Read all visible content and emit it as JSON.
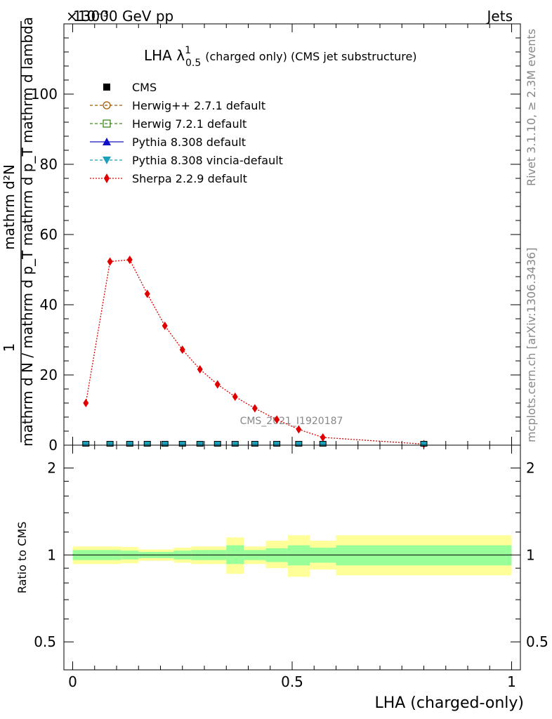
{
  "header": {
    "energy": "13000 GeV pp",
    "process": "Jets",
    "exponent": "×10⁻³"
  },
  "side": {
    "rivet": "Rivet 3.1.10, ≥ 2.3M events",
    "mcplots": "mcplots.cern.ch [arXiv:1306.3436]"
  },
  "chart_data": {
    "type": "line",
    "title_main": "LHA λ",
    "title_sup": "1",
    "title_sub": "0.5",
    "title_rest": "(charged only) (CMS jet substructure)",
    "watermark": "CMS_2021_I1920187",
    "ylabel": {
      "numer_line1": "1",
      "numer_line2": "mathrm d²N",
      "denom": "mathrm d N / mathrm d p_T mathrm d p_T mathrm d lambda"
    },
    "xlabel": "LHA (charged-only)",
    "ratio_ylabel": "Ratio to CMS",
    "xlim": [
      -0.02,
      1.02
    ],
    "ylim": [
      0,
      120
    ],
    "yticks": [
      0,
      20,
      40,
      60,
      80,
      100
    ],
    "xticks": [
      "0",
      "0.5",
      "1"
    ],
    "xtick_values": [
      0,
      0.5,
      1
    ],
    "ratio_yticks_labels": [
      "0.5",
      "1",
      "2"
    ],
    "ratio_yticks_values": [
      0.5,
      1,
      2
    ],
    "ratio_ylim": [
      0.4,
      2.4
    ],
    "legend": [
      {
        "name": "CMS",
        "color": "#000000",
        "marker": "square-filled"
      },
      {
        "name": "Herwig++ 2.7.1 default",
        "color": "#a05a00",
        "marker": "circle-open"
      },
      {
        "name": "Herwig 7.2.1 default",
        "color": "#3a8a1e",
        "marker": "square-open"
      },
      {
        "name": "Pythia 8.308 default",
        "color": "#1010c8",
        "marker": "triangle-up"
      },
      {
        "name": "Pythia 8.308 vincia-default",
        "color": "#1aa0b8",
        "marker": "triangle-down"
      },
      {
        "name": "Sherpa 2.2.9 default",
        "color": "#e00000",
        "marker": "diamond"
      }
    ],
    "cms_x": [
      0.03,
      0.085,
      0.13,
      0.17,
      0.21,
      0.25,
      0.29,
      0.33,
      0.37,
      0.415,
      0.465,
      0.515,
      0.57,
      0.8
    ],
    "cms_y": [
      0.4,
      0.4,
      0.4,
      0.4,
      0.4,
      0.4,
      0.4,
      0.4,
      0.4,
      0.4,
      0.4,
      0.4,
      0.4,
      0.4
    ],
    "sherpa_x": [
      0.03,
      0.085,
      0.13,
      0.17,
      0.21,
      0.25,
      0.29,
      0.33,
      0.37,
      0.415,
      0.465,
      0.515,
      0.57,
      0.8
    ],
    "sherpa_y": [
      12.0,
      52.3,
      52.8,
      43.1,
      34.0,
      27.2,
      21.6,
      17.3,
      13.8,
      10.5,
      7.3,
      4.5,
      2.2,
      0.3
    ],
    "ratio_bins": [
      {
        "x0": 0.0,
        "x1": 0.06,
        "inner": [
          0.96,
          1.04
        ],
        "outer": [
          0.93,
          1.07
        ]
      },
      {
        "x0": 0.06,
        "x1": 0.11,
        "inner": [
          0.96,
          1.04
        ],
        "outer": [
          0.93,
          1.07
        ]
      },
      {
        "x0": 0.11,
        "x1": 0.15,
        "inner": [
          0.965,
          1.035
        ],
        "outer": [
          0.935,
          1.065
        ]
      },
      {
        "x0": 0.15,
        "x1": 0.19,
        "inner": [
          0.975,
          1.025
        ],
        "outer": [
          0.955,
          1.045
        ]
      },
      {
        "x0": 0.19,
        "x1": 0.23,
        "inner": [
          0.975,
          1.025
        ],
        "outer": [
          0.955,
          1.045
        ]
      },
      {
        "x0": 0.23,
        "x1": 0.27,
        "inner": [
          0.965,
          1.035
        ],
        "outer": [
          0.94,
          1.06
        ]
      },
      {
        "x0": 0.27,
        "x1": 0.31,
        "inner": [
          0.96,
          1.04
        ],
        "outer": [
          0.93,
          1.07
        ]
      },
      {
        "x0": 0.31,
        "x1": 0.35,
        "inner": [
          0.96,
          1.04
        ],
        "outer": [
          0.93,
          1.07
        ]
      },
      {
        "x0": 0.35,
        "x1": 0.39,
        "inner": [
          0.93,
          1.08
        ],
        "outer": [
          0.86,
          1.15
        ]
      },
      {
        "x0": 0.39,
        "x1": 0.44,
        "inner": [
          0.96,
          1.04
        ],
        "outer": [
          0.93,
          1.07
        ]
      },
      {
        "x0": 0.44,
        "x1": 0.49,
        "inner": [
          0.945,
          1.055
        ],
        "outer": [
          0.9,
          1.12
        ]
      },
      {
        "x0": 0.49,
        "x1": 0.54,
        "inner": [
          0.92,
          1.08
        ],
        "outer": [
          0.84,
          1.17
        ]
      },
      {
        "x0": 0.54,
        "x1": 0.6,
        "inner": [
          0.94,
          1.06
        ],
        "outer": [
          0.89,
          1.12
        ]
      },
      {
        "x0": 0.6,
        "x1": 1.0,
        "inner": [
          0.92,
          1.08
        ],
        "outer": [
          0.85,
          1.17
        ]
      }
    ],
    "colors": {
      "inner_band": "#99ff99",
      "outer_band": "#ffff99",
      "sherpa": "#e00000",
      "mc_marker": "#1aa0b8"
    }
  }
}
